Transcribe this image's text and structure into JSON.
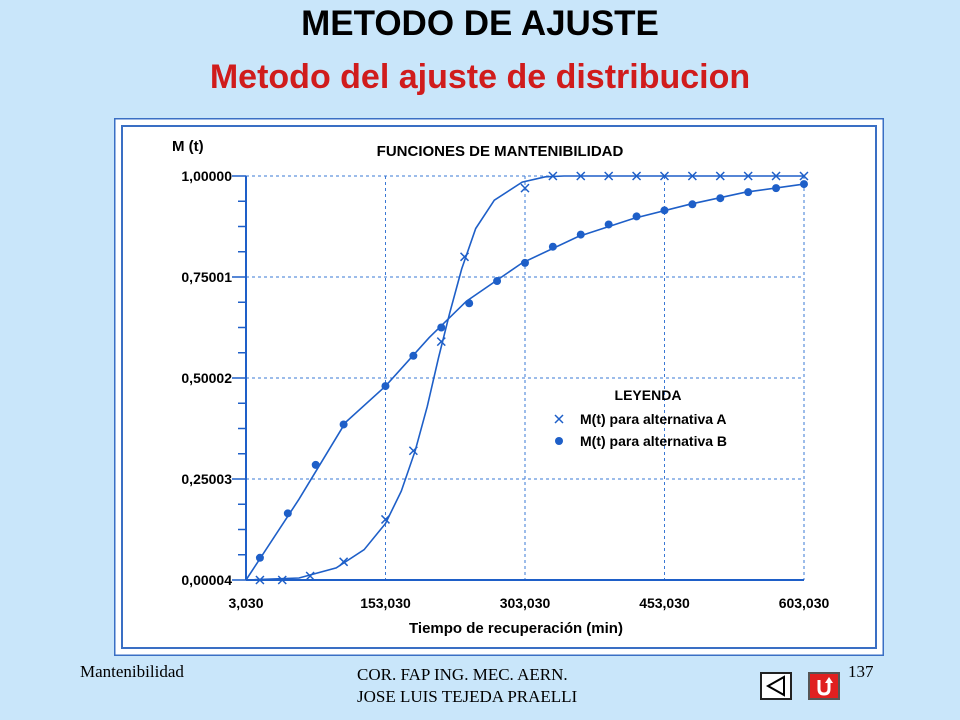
{
  "header": {
    "title": "METODO DE AJUSTE",
    "subtitle": "Metodo del ajuste de distribucion"
  },
  "chart_data": {
    "type": "line",
    "title": "FUNCIONES DE MANTENIBILIDAD",
    "ylabel": "M (t)",
    "xlabel": "Tiempo de recuperación (min)",
    "x_ticks": [
      "3,030",
      "153,030",
      "303,030",
      "453,030",
      "603,030"
    ],
    "y_ticks": [
      "0,00004",
      "0,25003",
      "0,50002",
      "0,75001",
      "1,00000"
    ],
    "xlim": [
      3.03,
      603.03
    ],
    "ylim": [
      4e-05,
      1.0
    ],
    "grid": true,
    "legend": {
      "title": "LEYENDA",
      "placement": "center-right"
    },
    "series": [
      {
        "name": "M(t) para alternativa A",
        "marker": "x",
        "color": "#1e5fc8",
        "x": [
          18,
          42,
          72,
          108,
          153,
          183,
          213,
          238,
          303,
          333,
          363,
          393,
          423,
          453,
          483,
          513,
          543,
          573,
          603
        ],
        "y": [
          0.0,
          0.0,
          0.01,
          0.045,
          0.15,
          0.32,
          0.59,
          0.8,
          0.97,
          1.0,
          1.0,
          1.0,
          1.0,
          1.0,
          1.0,
          1.0,
          1.0,
          1.0,
          1.0
        ],
        "curve_x": [
          3,
          60,
          100,
          130,
          153,
          170,
          185,
          198,
          210,
          222,
          235,
          250,
          270,
          300,
          325,
          345,
          603
        ],
        "curve_y": [
          0.0,
          0.005,
          0.03,
          0.075,
          0.14,
          0.22,
          0.32,
          0.43,
          0.55,
          0.66,
          0.77,
          0.87,
          0.94,
          0.985,
          0.998,
          1.0,
          1.0
        ]
      },
      {
        "name": "M(t) para alternativa B",
        "marker": "dot",
        "color": "#1e5fc8",
        "x": [
          18,
          48,
          78,
          108,
          153,
          183,
          213,
          243,
          273,
          303,
          333,
          363,
          393,
          423,
          453,
          483,
          513,
          543,
          573,
          603
        ],
        "y": [
          0.055,
          0.165,
          0.285,
          0.385,
          0.48,
          0.555,
          0.625,
          0.685,
          0.74,
          0.785,
          0.825,
          0.855,
          0.88,
          0.9,
          0.915,
          0.93,
          0.945,
          0.96,
          0.97,
          0.98
        ],
        "curve_x": [
          3,
          60,
          110,
          153,
          200,
          240,
          300,
          360,
          420,
          480,
          540,
          603
        ],
        "curve_y": [
          0.0,
          0.2,
          0.39,
          0.48,
          0.6,
          0.69,
          0.785,
          0.85,
          0.895,
          0.93,
          0.96,
          0.98
        ]
      }
    ]
  },
  "footer": {
    "left": "Mantenibilidad",
    "center_line1": "COR. FAP ING. MEC. AERN.",
    "center_line2": "JOSE  LUIS TEJEDA PRAELLI",
    "page_number": "137"
  }
}
